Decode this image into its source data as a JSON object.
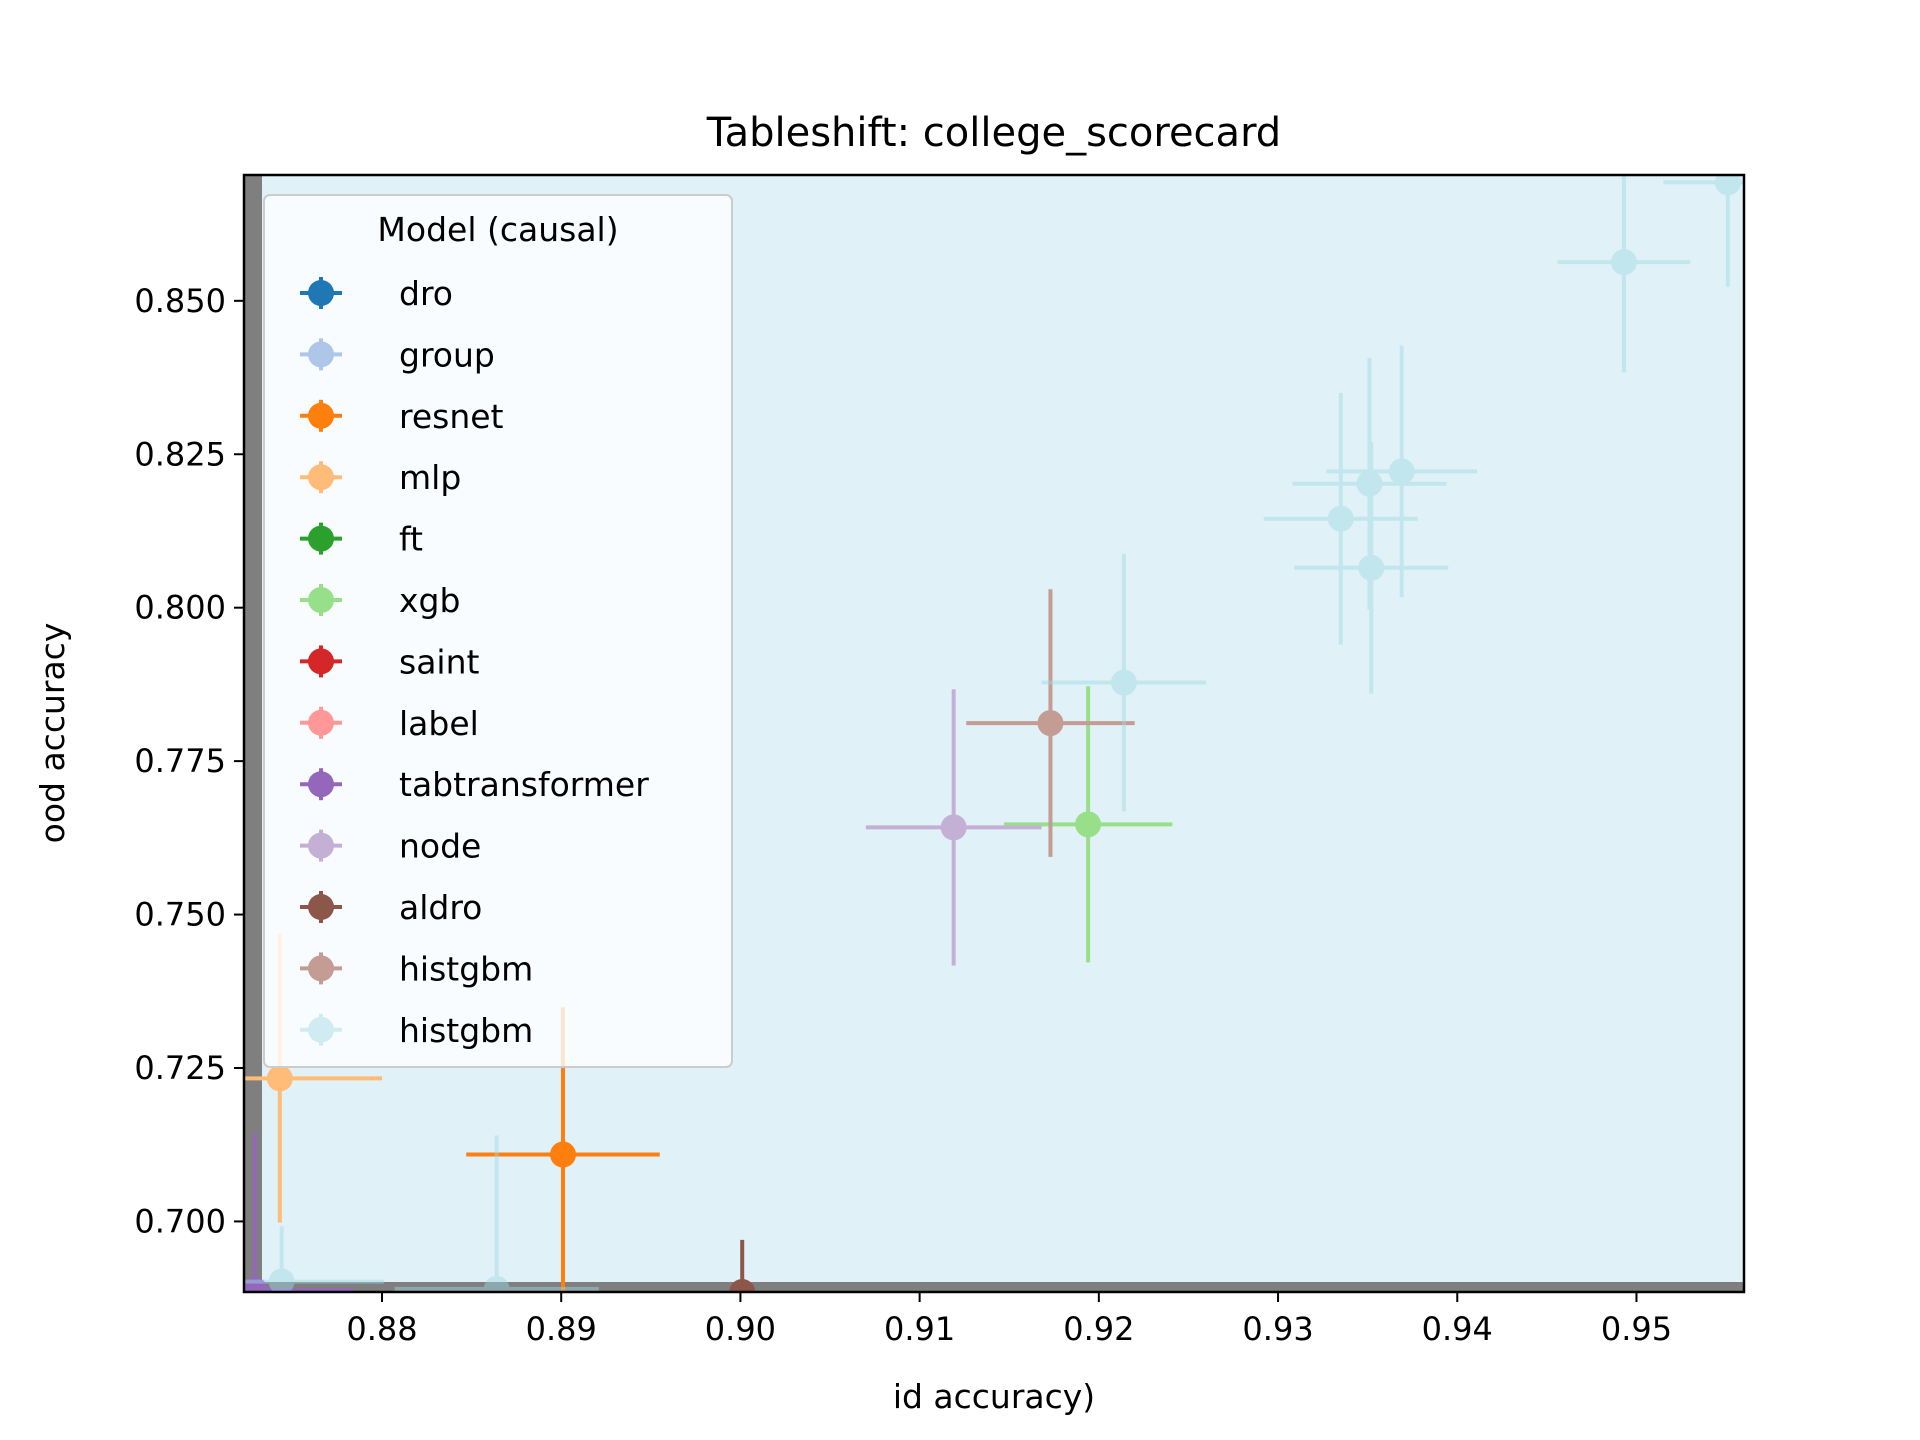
{
  "chart_data": {
    "type": "scatter",
    "title": "Tableshift: college_scorecard",
    "xlabel": "id accuracy)",
    "ylabel": "ood accuracy",
    "xlim": [
      0.8723,
      0.956
    ],
    "ylim": [
      0.6885,
      0.8705
    ],
    "xticks": [
      "0.88",
      "0.89",
      "0.90",
      "0.91",
      "0.92",
      "0.93",
      "0.94",
      "0.95"
    ],
    "yticks": [
      "0.700",
      "0.725",
      "0.750",
      "0.775",
      "0.800",
      "0.825",
      "0.850"
    ],
    "grid": false,
    "background_region": {
      "color": "#9fd4e5",
      "alpha": 0.32
    },
    "legend": {
      "title": "Model (causal)",
      "placement": "upper-left"
    },
    "series": [
      {
        "name": "dro",
        "color": "#1f77b4",
        "alpha": 1.0,
        "points": []
      },
      {
        "name": "group",
        "color": "#aec7e8",
        "alpha": 1.0,
        "points": []
      },
      {
        "name": "resnet",
        "color": "#ff7f0e",
        "alpha": 1.0,
        "points": [
          {
            "x": 0.8901,
            "y": 0.7109,
            "xerr": 0.0054,
            "yerr": 0.024
          }
        ]
      },
      {
        "name": "mlp",
        "color": "#ffbb78",
        "alpha": 1.0,
        "points": [
          {
            "x": 0.8743,
            "y": 0.7233,
            "xerr": 0.0057,
            "yerr": 0.0235
          }
        ]
      },
      {
        "name": "ft",
        "color": "#2ca02c",
        "alpha": 1.0,
        "points": []
      },
      {
        "name": "xgb",
        "color": "#98df8a",
        "alpha": 1.0,
        "points": [
          {
            "x": 0.9194,
            "y": 0.7647,
            "xerr": 0.0047,
            "yerr": 0.0225
          }
        ]
      },
      {
        "name": "saint",
        "color": "#d62728",
        "alpha": 1.0,
        "points": []
      },
      {
        "name": "label",
        "color": "#ff9896",
        "alpha": 1.0,
        "points": []
      },
      {
        "name": "tabtransformer",
        "color": "#9467bd",
        "alpha": 1.0,
        "points": [
          {
            "x": 0.8729,
            "y": 0.6888,
            "xerr": 0.0055,
            "yerr": 0.0255
          }
        ]
      },
      {
        "name": "node",
        "color": "#c5b0d5",
        "alpha": 1.0,
        "points": [
          {
            "x": 0.9119,
            "y": 0.7642,
            "xerr": 0.0049,
            "yerr": 0.0225
          }
        ]
      },
      {
        "name": "aldro",
        "color": "#8c564b",
        "alpha": 1.0,
        "points": [
          {
            "x": 0.9001,
            "y": 0.6885,
            "xerr": 0.0,
            "yerr": 0.0085
          }
        ]
      },
      {
        "name": "histgbm",
        "color": "#c49c94",
        "alpha": 1.0,
        "points": [
          {
            "x": 0.9173,
            "y": 0.7812,
            "xerr": 0.0047,
            "yerr": 0.0218
          }
        ]
      },
      {
        "name": "histgbm",
        "color": "#9edae5",
        "alpha": 0.45,
        "points": [
          {
            "x": 0.8744,
            "y": 0.6902,
            "xerr": 0.0057,
            "yerr": 0.009
          },
          {
            "x": 0.8864,
            "y": 0.689,
            "xerr": 0.0057,
            "yerr": 0.025
          },
          {
            "x": 0.9214,
            "y": 0.7878,
            "xerr": 0.0046,
            "yerr": 0.021
          },
          {
            "x": 0.9335,
            "y": 0.8145,
            "xerr": 0.0043,
            "yerr": 0.0205
          },
          {
            "x": 0.9351,
            "y": 0.8202,
            "xerr": 0.0043,
            "yerr": 0.0205
          },
          {
            "x": 0.9369,
            "y": 0.8222,
            "xerr": 0.0042,
            "yerr": 0.0205
          },
          {
            "x": 0.9352,
            "y": 0.8065,
            "xerr": 0.0043,
            "yerr": 0.0205
          },
          {
            "x": 0.9493,
            "y": 0.8563,
            "xerr": 0.0037,
            "yerr": 0.018
          },
          {
            "x": 0.9551,
            "y": 0.8693,
            "xerr": 0.0036,
            "yerr": 0.017
          }
        ]
      }
    ]
  }
}
